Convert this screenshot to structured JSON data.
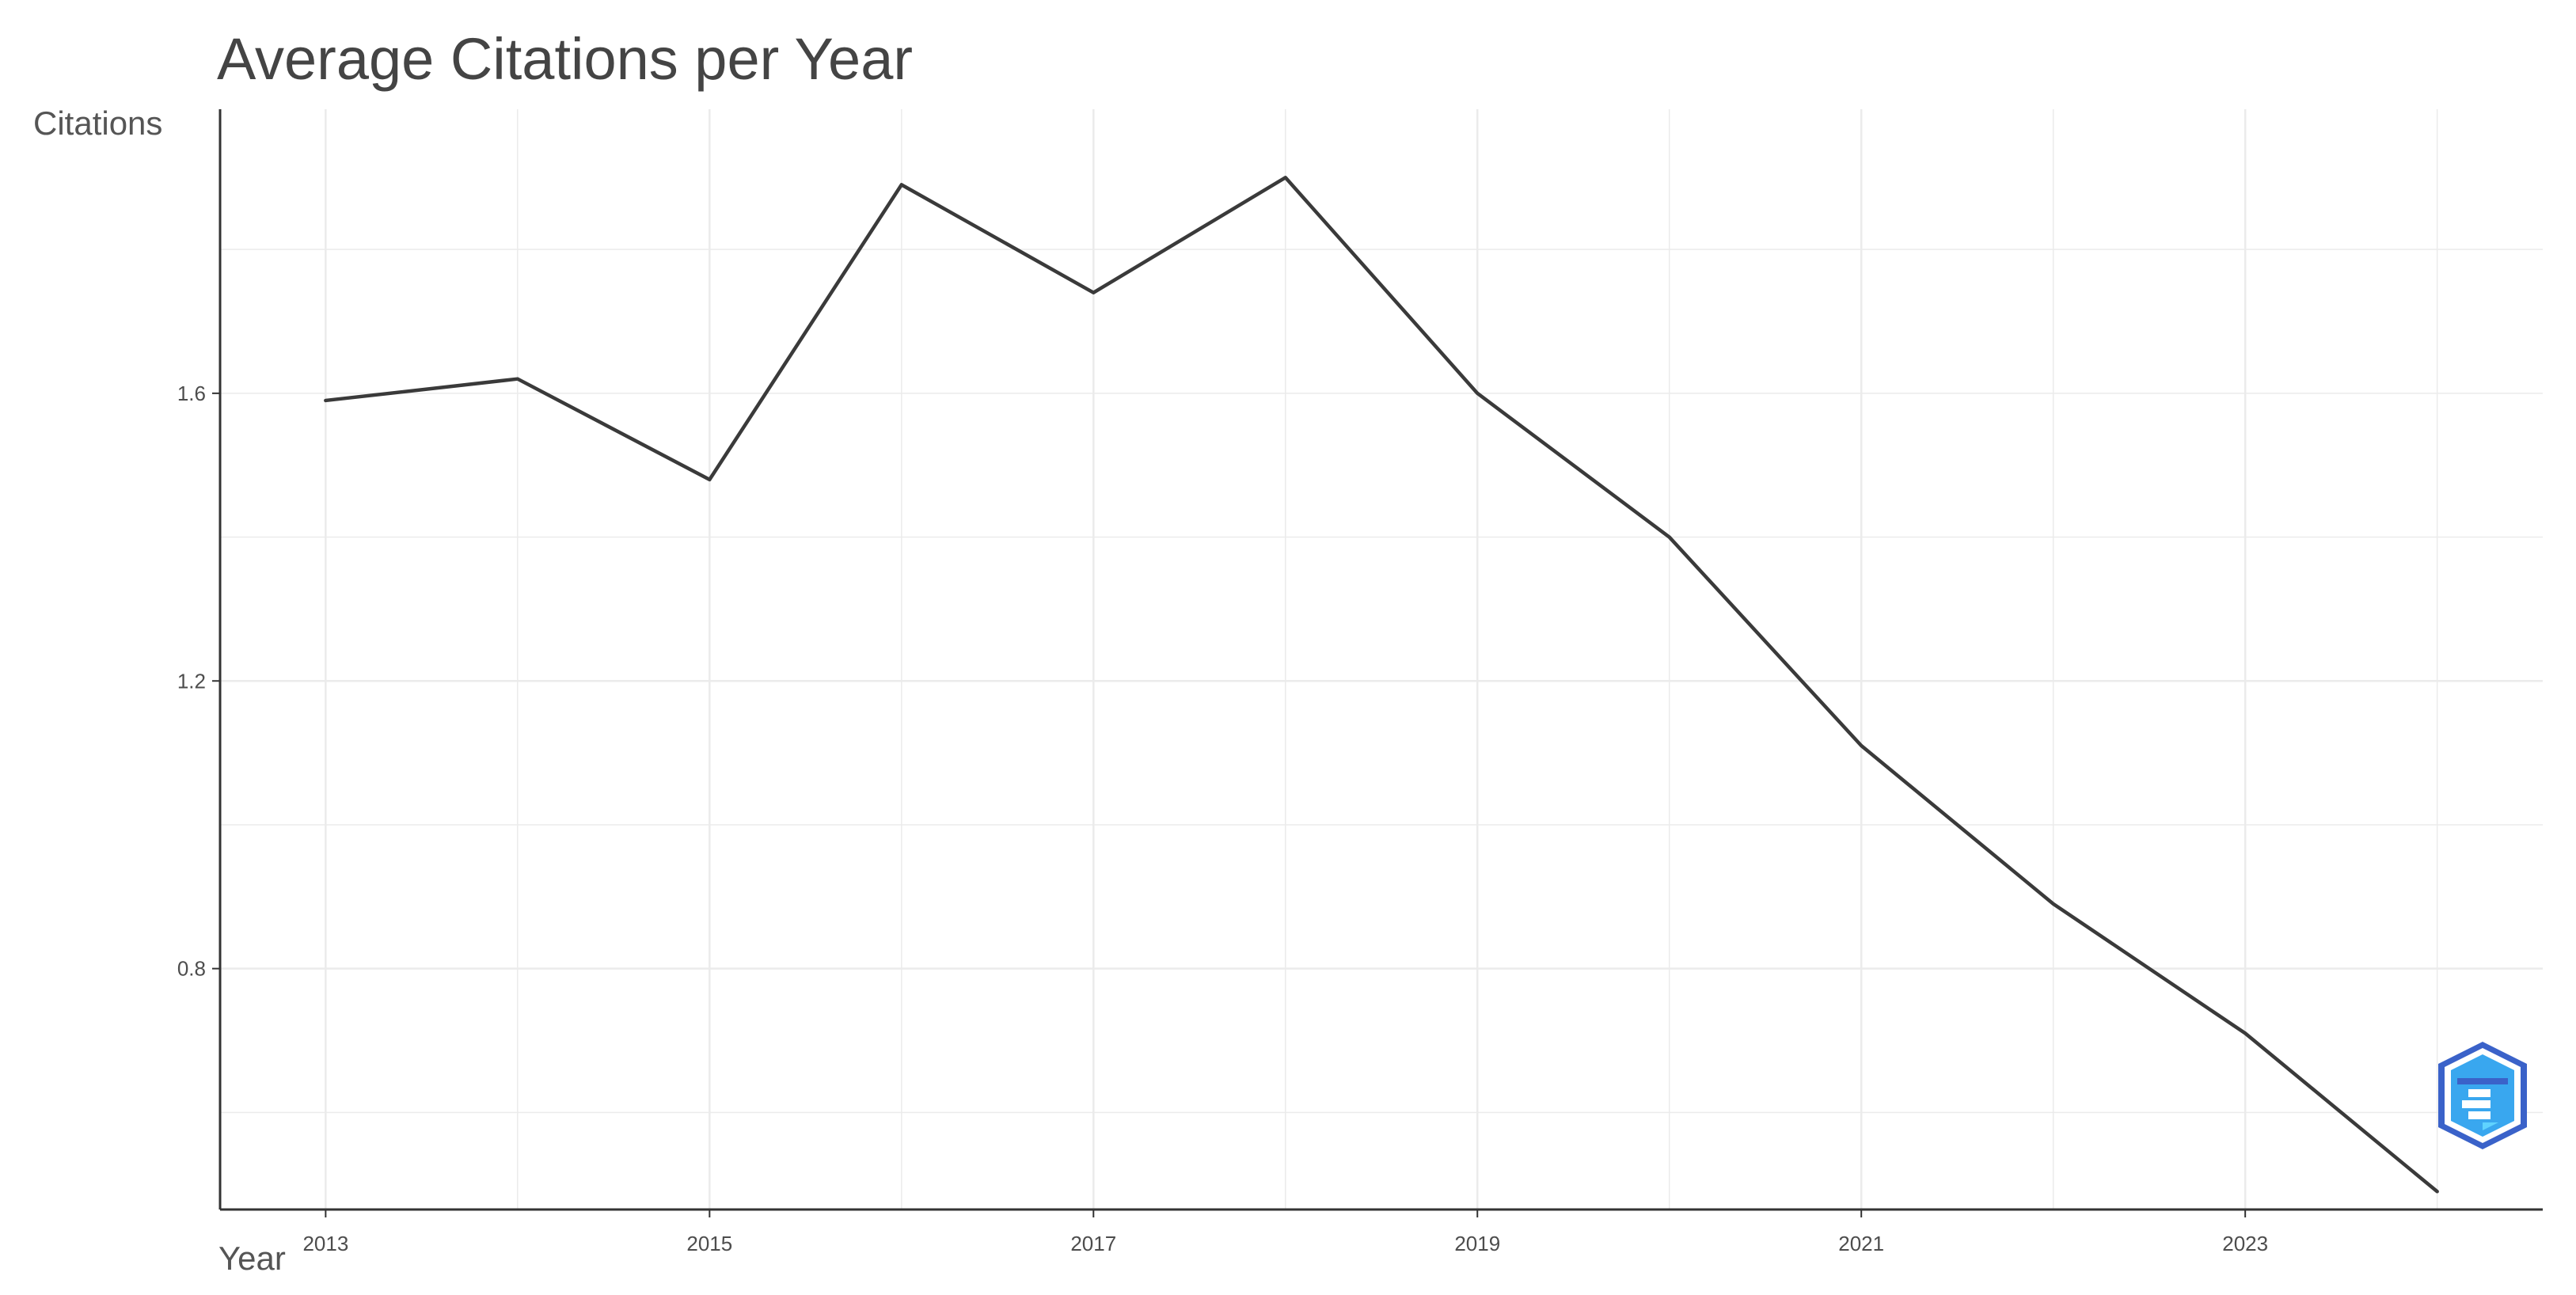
{
  "chart_data": {
    "type": "line",
    "title": "Average Citations per Year",
    "xlabel": "Year",
    "ylabel": "Citations",
    "x": [
      2013,
      2014,
      2015,
      2016,
      2017,
      2018,
      2019,
      2020,
      2021,
      2022,
      2023,
      2024
    ],
    "series": [
      {
        "values": [
          1.59,
          1.62,
          1.48,
          1.89,
          1.74,
          1.9,
          1.6,
          1.4,
          1.11,
          0.89,
          0.71,
          0.49
        ]
      }
    ],
    "xlim": [
      2012.45,
      2024.55
    ],
    "ylim": [
      0.465,
      1.995
    ],
    "x_ticks": [
      "2013",
      "2015",
      "2017",
      "2019",
      "2021",
      "2023"
    ],
    "y_ticks": [
      "0.8",
      "1.2",
      "1.6"
    ],
    "grid": true,
    "line_color": "#3a3a3a",
    "grid_color": "#ebebeb",
    "axis_color": "#333333",
    "logo": {
      "name": "bibliometrix",
      "colors": [
        "#3a62c9",
        "#39a7ef",
        "#5fd3ff"
      ]
    }
  }
}
